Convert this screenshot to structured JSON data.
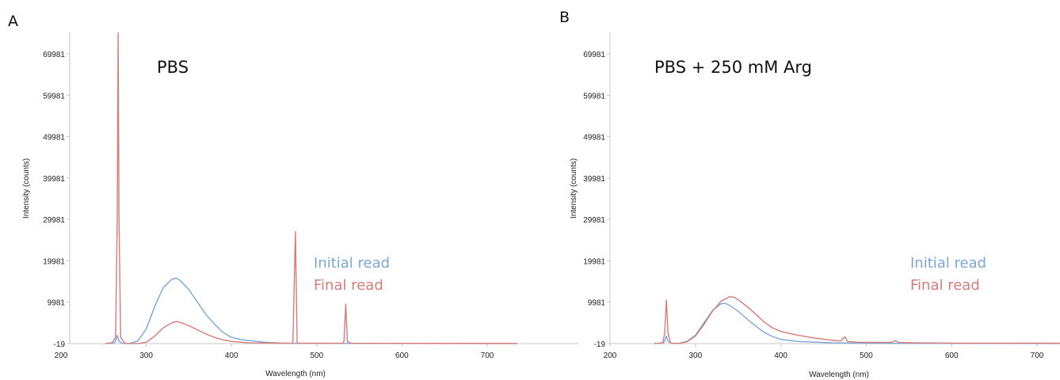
{
  "colors": {
    "initial": "#7ba7d6",
    "final": "#d97a7a"
  },
  "chart_data": [
    {
      "panel": "A",
      "type": "line",
      "title": "PBS",
      "xlabel": "Wavelength (nm)",
      "ylabel": "Intensity (counts)",
      "xlim": [
        200,
        730
      ],
      "ylim": [
        -19,
        75000
      ],
      "xticks": [
        200,
        300,
        400,
        500,
        600,
        700
      ],
      "yticks": [
        -19,
        9981,
        19981,
        29981,
        39981,
        49981,
        59981,
        69981
      ],
      "grid": false,
      "legend": "right, inside plot",
      "series": [
        {
          "name": "Initial read",
          "color": "#7ba7d6",
          "points": [
            [
              252,
              0
            ],
            [
              262,
              100
            ],
            [
              264,
              600
            ],
            [
              266,
              2000
            ],
            [
              268,
              600
            ],
            [
              271,
              100
            ],
            [
              280,
              0
            ],
            [
              290,
              600
            ],
            [
              300,
              3500
            ],
            [
              310,
              9000
            ],
            [
              320,
              13500
            ],
            [
              330,
              15500
            ],
            [
              335,
              15800
            ],
            [
              340,
              15200
            ],
            [
              350,
              13000
            ],
            [
              360,
              10000
            ],
            [
              370,
              7000
            ],
            [
              380,
              4700
            ],
            [
              390,
              2700
            ],
            [
              400,
              1500
            ],
            [
              410,
              1000
            ],
            [
              420,
              700
            ],
            [
              440,
              300
            ],
            [
              460,
              100
            ],
            [
              500,
              50
            ],
            [
              550,
              20
            ],
            [
              735,
              0
            ]
          ]
        },
        {
          "name": "Final read",
          "color": "#d97a7a",
          "points": [
            [
              252,
              0
            ],
            [
              260,
              200
            ],
            [
              264,
              1500
            ],
            [
              266,
              30000
            ],
            [
              267,
              75000
            ],
            [
              268,
              30000
            ],
            [
              270,
              1500
            ],
            [
              275,
              0
            ],
            [
              290,
              0
            ],
            [
              300,
              300
            ],
            [
              310,
              1800
            ],
            [
              320,
              3800
            ],
            [
              330,
              5000
            ],
            [
              335,
              5300
            ],
            [
              340,
              5100
            ],
            [
              350,
              4300
            ],
            [
              360,
              3300
            ],
            [
              370,
              2300
            ],
            [
              380,
              1500
            ],
            [
              390,
              900
            ],
            [
              400,
              500
            ],
            [
              420,
              150
            ],
            [
              460,
              50
            ],
            [
              472,
              100
            ],
            [
              475,
              27000
            ],
            [
              477,
              100
            ],
            [
              485,
              50
            ],
            [
              530,
              50
            ],
            [
              532,
              500
            ],
            [
              534,
              9500
            ],
            [
              536,
              500
            ],
            [
              540,
              50
            ],
            [
              735,
              0
            ]
          ]
        }
      ]
    },
    {
      "panel": "B",
      "type": "line",
      "title": "PBS + 250 mM Arg",
      "xlabel": "Wavelength (nm)",
      "ylabel": "Intensity (counts)",
      "xlim": [
        200,
        730
      ],
      "ylim": [
        -19,
        75000
      ],
      "xticks": [
        200,
        300,
        400,
        500,
        600,
        700
      ],
      "yticks": [
        -19,
        9981,
        19981,
        29981,
        39981,
        49981,
        59981,
        69981
      ],
      "grid": false,
      "legend": "right, inside plot",
      "series": [
        {
          "name": "Initial read",
          "color": "#7ba7d6",
          "points": [
            [
              252,
              0
            ],
            [
              262,
              100
            ],
            [
              264,
              500
            ],
            [
              266,
              1800
            ],
            [
              268,
              500
            ],
            [
              271,
              100
            ],
            [
              280,
              0
            ],
            [
              290,
              500
            ],
            [
              300,
              2000
            ],
            [
              310,
              5000
            ],
            [
              320,
              8000
            ],
            [
              330,
              9600
            ],
            [
              335,
              9700
            ],
            [
              340,
              9200
            ],
            [
              350,
              7800
            ],
            [
              360,
              6000
            ],
            [
              370,
              4300
            ],
            [
              380,
              2800
            ],
            [
              390,
              1700
            ],
            [
              400,
              1000
            ],
            [
              420,
              500
            ],
            [
              460,
              150
            ],
            [
              500,
              50
            ],
            [
              735,
              0
            ]
          ]
        },
        {
          "name": "Final read",
          "color": "#d97a7a",
          "points": [
            [
              252,
              0
            ],
            [
              262,
              200
            ],
            [
              264,
              2500
            ],
            [
              266,
              10500
            ],
            [
              268,
              2500
            ],
            [
              271,
              100
            ],
            [
              280,
              0
            ],
            [
              290,
              400
            ],
            [
              300,
              1800
            ],
            [
              310,
              4600
            ],
            [
              320,
              7800
            ],
            [
              330,
              10200
            ],
            [
              340,
              11300
            ],
            [
              345,
              11200
            ],
            [
              350,
              10600
            ],
            [
              360,
              9000
            ],
            [
              370,
              7200
            ],
            [
              380,
              5300
            ],
            [
              390,
              3800
            ],
            [
              400,
              2900
            ],
            [
              420,
              2000
            ],
            [
              440,
              1300
            ],
            [
              460,
              800
            ],
            [
              470,
              600
            ],
            [
              475,
              1600
            ],
            [
              478,
              500
            ],
            [
              490,
              300
            ],
            [
              520,
              250
            ],
            [
              530,
              300
            ],
            [
              534,
              700
            ],
            [
              538,
              250
            ],
            [
              560,
              150
            ],
            [
              600,
              100
            ],
            [
              700,
              100
            ],
            [
              735,
              50
            ]
          ]
        }
      ]
    }
  ]
}
